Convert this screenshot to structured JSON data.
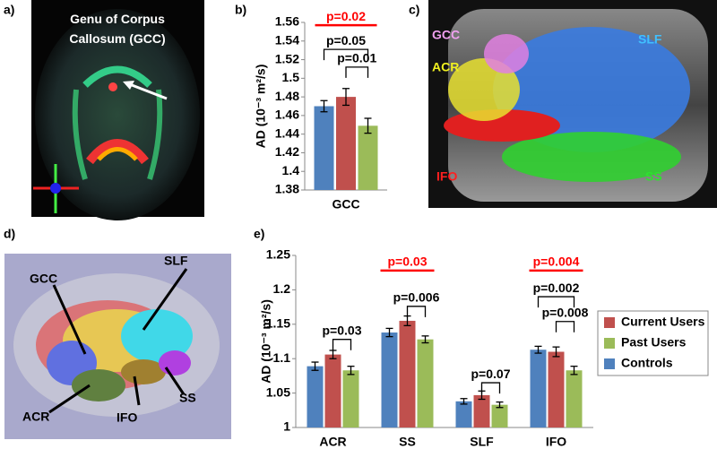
{
  "panels": {
    "a": {
      "label": "a)",
      "caption": "Genu of Corpus Callosum (GCC)"
    },
    "c": {
      "label": "c)",
      "tracts": [
        "GCC",
        "SLF",
        "ACR",
        "IFO",
        "SS"
      ]
    },
    "d": {
      "label": "d)",
      "tracts": [
        "GCC",
        "SLF",
        "ACR",
        "IFO",
        "SS"
      ]
    }
  },
  "chart_data": [
    {
      "type": "bar",
      "panel_label": "b)",
      "ylabel": "AD (10⁻³ m²/s)",
      "categories": [
        "GCC"
      ],
      "series": [
        {
          "name": "Current Users",
          "color": "#c0504d",
          "values": [
            1.48
          ],
          "errors": [
            0.009
          ]
        },
        {
          "name": "Past Users",
          "color": "#9bbb59",
          "values": [
            1.449
          ],
          "errors": [
            0.008
          ]
        },
        {
          "name": "Controls",
          "color": "#4f81bd",
          "values": [
            1.47
          ],
          "errors": [
            0.006
          ]
        }
      ],
      "ylim": [
        1.38,
        1.56
      ],
      "yticks": [
        1.38,
        1.4,
        1.42,
        1.44,
        1.46,
        1.48,
        1.5,
        1.52,
        1.54,
        1.56
      ],
      "annotations": [
        {
          "text": "p=0.02",
          "color": "#ff0000"
        },
        {
          "text": "p=0.05",
          "color": "#000000"
        },
        {
          "text": "p=0.01",
          "color": "#000000"
        }
      ]
    },
    {
      "type": "bar",
      "panel_label": "e)",
      "ylabel": "AD (10⁻³ m²/s)",
      "categories": [
        "ACR",
        "SS",
        "SLF",
        "IFO"
      ],
      "series": [
        {
          "name": "Current Users",
          "color": "#c0504d",
          "values": [
            1.106,
            1.155,
            1.047,
            1.11
          ],
          "errors": [
            0.006,
            0.007,
            0.006,
            0.007
          ]
        },
        {
          "name": "Past Users",
          "color": "#9bbb59",
          "values": [
            1.083,
            1.128,
            1.033,
            1.083
          ],
          "errors": [
            0.006,
            0.005,
            0.004,
            0.006
          ]
        },
        {
          "name": "Controls",
          "color": "#4f81bd",
          "values": [
            1.089,
            1.138,
            1.038,
            1.113
          ],
          "errors": [
            0.006,
            0.006,
            0.004,
            0.005
          ]
        }
      ],
      "ylim": [
        1,
        1.25
      ],
      "yticks": [
        1,
        1.05,
        1.1,
        1.15,
        1.2,
        1.25
      ],
      "legend": "right",
      "annotations": [
        {
          "text": "p=0.03",
          "color": "#000000"
        },
        {
          "text": "p=0.03",
          "color": "#ff0000"
        },
        {
          "text": "p=0.006",
          "color": "#000000"
        },
        {
          "text": "p=0.07",
          "color": "#000000"
        },
        {
          "text": "p=0.004",
          "color": "#ff0000"
        },
        {
          "text": "p=0.002",
          "color": "#000000"
        },
        {
          "text": "p=0.008",
          "color": "#000000"
        }
      ]
    }
  ]
}
